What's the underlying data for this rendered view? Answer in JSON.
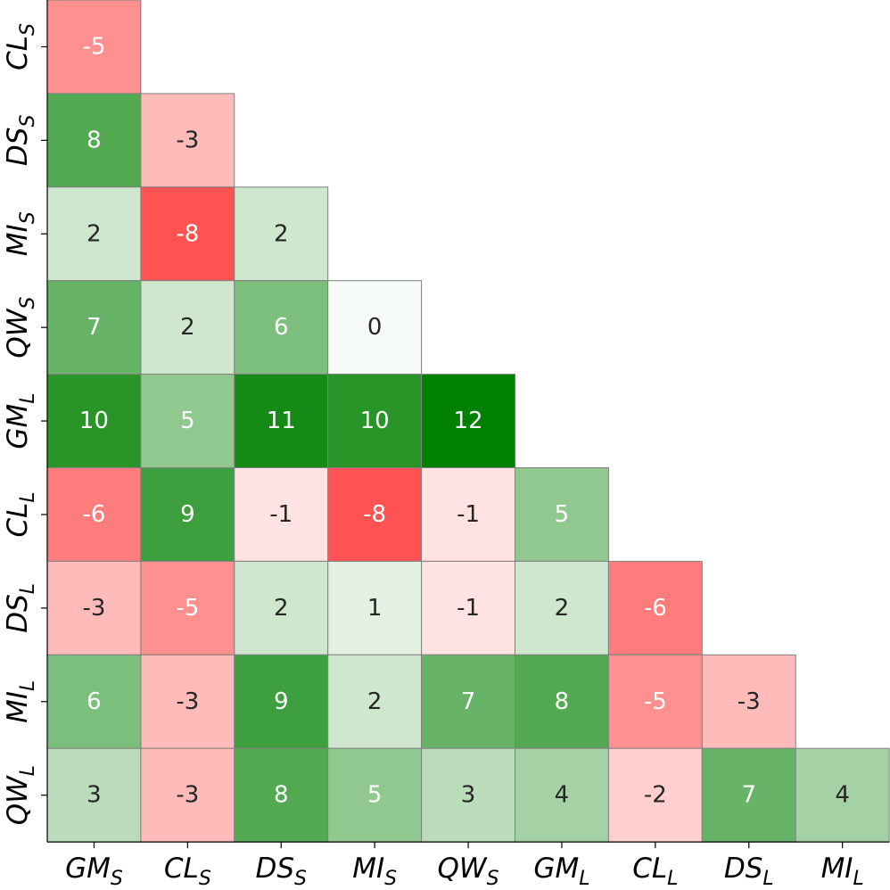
{
  "chart_data": {
    "type": "heatmap",
    "title": "",
    "xlabel": "",
    "ylabel": "",
    "x_labels": [
      {
        "base": "GM",
        "sub": "S"
      },
      {
        "base": "CL",
        "sub": "S"
      },
      {
        "base": "DS",
        "sub": "S"
      },
      {
        "base": "MI",
        "sub": "S"
      },
      {
        "base": "QW",
        "sub": "S"
      },
      {
        "base": "GM",
        "sub": "L"
      },
      {
        "base": "CL",
        "sub": "L"
      },
      {
        "base": "DS",
        "sub": "L"
      },
      {
        "base": "MI",
        "sub": "L"
      }
    ],
    "y_labels": [
      {
        "base": "CL",
        "sub": "S"
      },
      {
        "base": "DS",
        "sub": "S"
      },
      {
        "base": "MI",
        "sub": "S"
      },
      {
        "base": "QW",
        "sub": "S"
      },
      {
        "base": "GM",
        "sub": "L"
      },
      {
        "base": "CL",
        "sub": "L"
      },
      {
        "base": "DS",
        "sub": "L"
      },
      {
        "base": "MI",
        "sub": "L"
      },
      {
        "base": "QW",
        "sub": "L"
      }
    ],
    "values": [
      [
        -5
      ],
      [
        8,
        -3
      ],
      [
        2,
        -8,
        2
      ],
      [
        7,
        2,
        6,
        0
      ],
      [
        10,
        5,
        11,
        10,
        12
      ],
      [
        -6,
        9,
        -1,
        -8,
        -1,
        5
      ],
      [
        -3,
        -5,
        2,
        1,
        -1,
        2,
        -6
      ],
      [
        6,
        -3,
        9,
        2,
        7,
        8,
        -5,
        -3
      ],
      [
        3,
        -3,
        8,
        5,
        3,
        4,
        -2,
        7,
        4
      ]
    ],
    "colormap": "red-white-green",
    "colors": {
      "negative_max": "#ff0000",
      "neutral": "#ffffff",
      "positive_max": "#008000",
      "cell_border": "#808080",
      "text_dark": "#262626",
      "text_light": "#ffffff"
    },
    "lower_triangle": true,
    "grid": false,
    "legend": "none"
  }
}
